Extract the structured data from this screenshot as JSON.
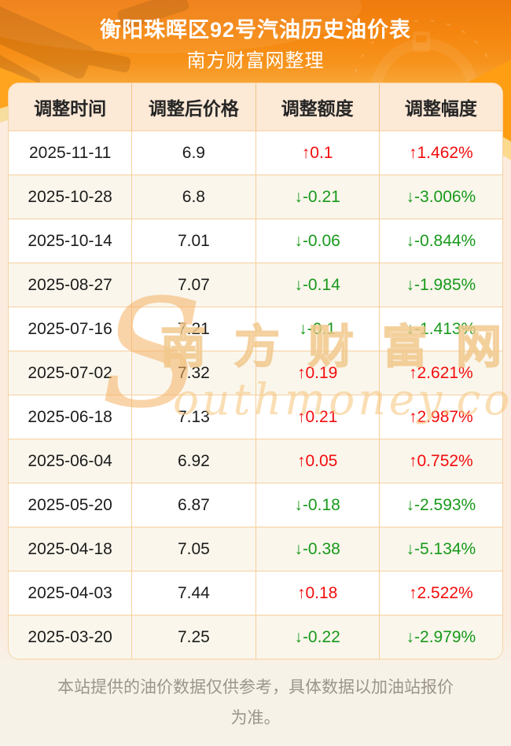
{
  "header": {
    "title": "衡阳珠晖区92号汽油历史油价表",
    "subtitle": "南方财富网整理"
  },
  "chart_data": {
    "type": "table",
    "title": "衡阳珠晖区92号汽油历史油价表",
    "columns": [
      "调整时间",
      "调整后价格",
      "调整额度",
      "调整幅度"
    ],
    "rows": [
      {
        "date": "2025-11-11",
        "price": "6.9",
        "change": "↑0.1",
        "change_pct": "↑1.462%",
        "direction": "up"
      },
      {
        "date": "2025-10-28",
        "price": "6.8",
        "change": "↓-0.21",
        "change_pct": "↓-3.006%",
        "direction": "down"
      },
      {
        "date": "2025-10-14",
        "price": "7.01",
        "change": "↓-0.06",
        "change_pct": "↓-0.844%",
        "direction": "down"
      },
      {
        "date": "2025-08-27",
        "price": "7.07",
        "change": "↓-0.14",
        "change_pct": "↓-1.985%",
        "direction": "down"
      },
      {
        "date": "2025-07-16",
        "price": "7.21",
        "change": "↓-0.1",
        "change_pct": "↓-1.413%",
        "direction": "down"
      },
      {
        "date": "2025-07-02",
        "price": "7.32",
        "change": "↑0.19",
        "change_pct": "↑2.621%",
        "direction": "up"
      },
      {
        "date": "2025-06-18",
        "price": "7.13",
        "change": "↑0.21",
        "change_pct": "↑2.987%",
        "direction": "up"
      },
      {
        "date": "2025-06-04",
        "price": "6.92",
        "change": "↑0.05",
        "change_pct": "↑0.752%",
        "direction": "up"
      },
      {
        "date": "2025-05-20",
        "price": "6.87",
        "change": "↓-0.18",
        "change_pct": "↓-2.593%",
        "direction": "down"
      },
      {
        "date": "2025-04-18",
        "price": "7.05",
        "change": "↓-0.38",
        "change_pct": "↓-5.134%",
        "direction": "down"
      },
      {
        "date": "2025-04-03",
        "price": "7.44",
        "change": "↑0.18",
        "change_pct": "↑2.522%",
        "direction": "up"
      },
      {
        "date": "2025-03-20",
        "price": "7.25",
        "change": "↓-0.22",
        "change_pct": "↓-2.979%",
        "direction": "down"
      }
    ]
  },
  "colors": {
    "up": "#f20d0d",
    "down": "#18991b",
    "banner_orange": "#f5870f",
    "header_row_bg": "#fce9d6",
    "row_alt_bg": "#faf6ec",
    "grid_line": "#f6cf9d"
  },
  "watermark": {
    "s_glyph": "S",
    "cjk": "南方财富网",
    "latin_rest": "outhmoney.com"
  },
  "footer": {
    "disclaimer": "本站提供的油价数据仅供参考，具体数据以加油站报价为准。"
  }
}
